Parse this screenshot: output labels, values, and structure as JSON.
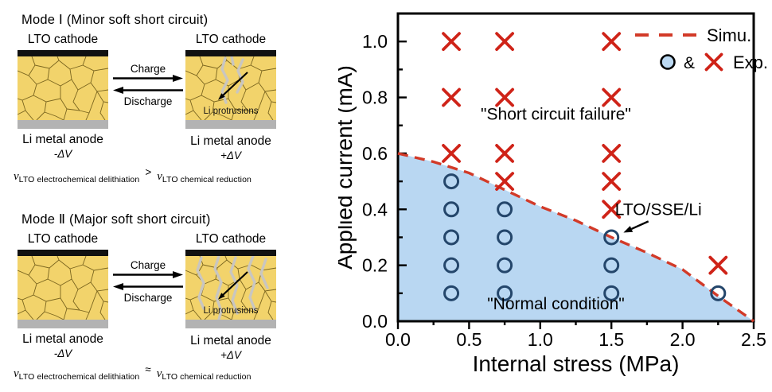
{
  "left_panel": {
    "modes": [
      {
        "title": "Mode Ⅰ (Minor soft short circuit)",
        "left_electrode_label": "LTO cathode",
        "right_electrode_label": "LTO cathode",
        "charge_label": "Charge",
        "discharge_label": "Discharge",
        "protrusion_label": "Li protrusions",
        "left_anode_label": "Li metal anode",
        "right_anode_label": "Li metal anode",
        "left_voltage_label": "-ΔV",
        "right_voltage_label": "+ΔV",
        "formula": {
          "v_symbol": "v",
          "left_subscript": "LTO electrochemical delithiation",
          "relation": ">",
          "right_subscript": "LTO chemical reduction"
        }
      },
      {
        "title": "Mode Ⅱ (Major soft short circuit)",
        "left_electrode_label": "LTO cathode",
        "right_electrode_label": "LTO cathode",
        "charge_label": "Charge",
        "discharge_label": "Discharge",
        "protrusion_label": "Li protrusions",
        "left_anode_label": "Li metal anode",
        "right_anode_label": "Li metal anode",
        "left_voltage_label": "-ΔV",
        "right_voltage_label": "+ΔV",
        "formula": {
          "v_symbol": "v",
          "left_subscript": "LTO electrochemical delithiation",
          "relation": "≈",
          "right_subscript": "LTO chemical reduction"
        }
      }
    ],
    "colors": {
      "lto_yellow": "#f2d36b",
      "grain_line": "#7a651f",
      "current_collector_black": "#111111",
      "anode_gray": "#b3b3b3",
      "protrusion_gray": "#c9c6c0"
    }
  },
  "chart_data": {
    "type": "scatter",
    "title": "",
    "xlabel": "Internal stress (MPa)",
    "ylabel": "Applied current (mA)",
    "xlim": [
      0,
      2.5
    ],
    "ylim": [
      0,
      1.1
    ],
    "xticks": [
      0.0,
      0.5,
      1.0,
      1.5,
      2.0,
      2.5
    ],
    "yticks": [
      0.0,
      0.2,
      0.4,
      0.6,
      0.8,
      1.0
    ],
    "x_minor_step": 0.25,
    "y_minor_step": 0.1,
    "grid": false,
    "legend_position": "top-right",
    "series": [
      {
        "name": "Exp. normal condition (circles)",
        "marker": "circle",
        "points": [
          [
            0.375,
            0.1
          ],
          [
            0.375,
            0.2
          ],
          [
            0.375,
            0.3
          ],
          [
            0.375,
            0.4
          ],
          [
            0.375,
            0.5
          ],
          [
            0.75,
            0.1
          ],
          [
            0.75,
            0.2
          ],
          [
            0.75,
            0.3
          ],
          [
            0.75,
            0.4
          ],
          [
            1.5,
            0.1
          ],
          [
            1.5,
            0.2
          ],
          [
            1.5,
            0.3
          ],
          [
            2.25,
            0.1
          ]
        ]
      },
      {
        "name": "Exp. short circuit failure (x marks)",
        "marker": "x",
        "points": [
          [
            0.375,
            0.6
          ],
          [
            0.375,
            0.8
          ],
          [
            0.375,
            1.0
          ],
          [
            0.75,
            0.5
          ],
          [
            0.75,
            0.6
          ],
          [
            0.75,
            0.8
          ],
          [
            0.75,
            1.0
          ],
          [
            1.5,
            0.4
          ],
          [
            1.5,
            0.5
          ],
          [
            1.5,
            0.6
          ],
          [
            1.5,
            0.8
          ],
          [
            1.5,
            1.0
          ],
          [
            2.25,
            0.2
          ]
        ]
      },
      {
        "name": "Simu. boundary",
        "marker": "dashed-line",
        "points": [
          [
            0,
            0.6
          ],
          [
            0.25,
            0.57
          ],
          [
            0.5,
            0.53
          ],
          [
            0.75,
            0.47
          ],
          [
            1.0,
            0.41
          ],
          [
            1.25,
            0.36
          ],
          [
            1.5,
            0.3
          ],
          [
            1.75,
            0.245
          ],
          [
            2.0,
            0.185
          ],
          [
            2.25,
            0.09
          ],
          [
            2.5,
            0
          ]
        ]
      }
    ],
    "annotations": [
      {
        "id": "short-circuit-failure-label",
        "text": "\"Short circuit failure\"",
        "x": 1.11,
        "y": 0.74
      },
      {
        "id": "normal-condition-label",
        "text": "\"Normal condition\"",
        "x": 1.11,
        "y": 0.062
      },
      {
        "id": "cell-stack-label",
        "text": "LTO/SSE/Li",
        "x": 1.83,
        "y": 0.4
      }
    ],
    "annotation_arrow": {
      "from": [
        1.76,
        0.357
      ],
      "to": [
        1.585,
        0.317
      ]
    },
    "legend": {
      "simu_label": "Simu.",
      "exp_joiner": "&",
      "exp_label": "Exp."
    },
    "colors": {
      "marker_x_red": "#cf2318",
      "boundary_dash_red": "#d23a28",
      "region_blue": "#b9d7f2",
      "circle_stroke": "#24466b",
      "legend_circle_fill": "#bcd9f2",
      "axis_black": "#000000"
    }
  }
}
